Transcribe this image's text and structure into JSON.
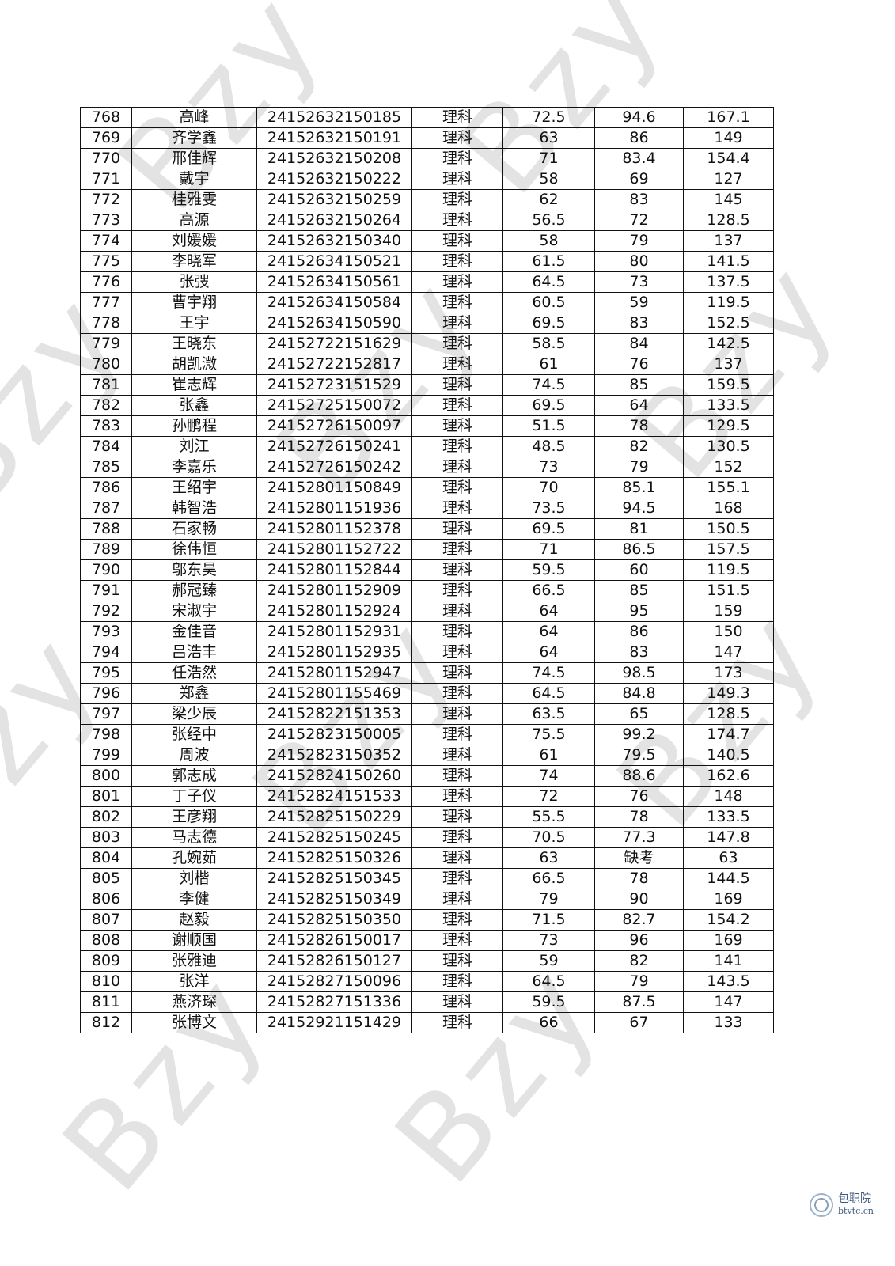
{
  "watermark": "Bzy",
  "logo": {
    "name_cn": "包职院",
    "domain": "btvtc.cn"
  },
  "table": {
    "rows": [
      [
        "768",
        "高峰",
        "24152632150185",
        "理科",
        "72.5",
        "94.6",
        "167.1"
      ],
      [
        "769",
        "齐学鑫",
        "24152632150191",
        "理科",
        "63",
        "86",
        "149"
      ],
      [
        "770",
        "邢佳辉",
        "24152632150208",
        "理科",
        "71",
        "83.4",
        "154.4"
      ],
      [
        "771",
        "戴宇",
        "24152632150222",
        "理科",
        "58",
        "69",
        "127"
      ],
      [
        "772",
        "桂雅雯",
        "24152632150259",
        "理科",
        "62",
        "83",
        "145"
      ],
      [
        "773",
        "高源",
        "24152632150264",
        "理科",
        "56.5",
        "72",
        "128.5"
      ],
      [
        "774",
        "刘媛媛",
        "24152632150340",
        "理科",
        "58",
        "79",
        "137"
      ],
      [
        "775",
        "李晓军",
        "24152634150521",
        "理科",
        "61.5",
        "80",
        "141.5"
      ],
      [
        "776",
        "张弢",
        "24152634150561",
        "理科",
        "64.5",
        "73",
        "137.5"
      ],
      [
        "777",
        "曹宇翔",
        "24152634150584",
        "理科",
        "60.5",
        "59",
        "119.5"
      ],
      [
        "778",
        "王宇",
        "24152634150590",
        "理科",
        "69.5",
        "83",
        "152.5"
      ],
      [
        "779",
        "王晓东",
        "24152722151629",
        "理科",
        "58.5",
        "84",
        "142.5"
      ],
      [
        "780",
        "胡凯溦",
        "24152722152817",
        "理科",
        "61",
        "76",
        "137"
      ],
      [
        "781",
        "崔志辉",
        "24152723151529",
        "理科",
        "74.5",
        "85",
        "159.5"
      ],
      [
        "782",
        "张鑫",
        "24152725150072",
        "理科",
        "69.5",
        "64",
        "133.5"
      ],
      [
        "783",
        "孙鹏程",
        "24152726150097",
        "理科",
        "51.5",
        "78",
        "129.5"
      ],
      [
        "784",
        "刘江",
        "24152726150241",
        "理科",
        "48.5",
        "82",
        "130.5"
      ],
      [
        "785",
        "李嘉乐",
        "24152726150242",
        "理科",
        "73",
        "79",
        "152"
      ],
      [
        "786",
        "王绍宇",
        "24152801150849",
        "理科",
        "70",
        "85.1",
        "155.1"
      ],
      [
        "787",
        "韩智浩",
        "24152801151936",
        "理科",
        "73.5",
        "94.5",
        "168"
      ],
      [
        "788",
        "石家畅",
        "24152801152378",
        "理科",
        "69.5",
        "81",
        "150.5"
      ],
      [
        "789",
        "徐伟恒",
        "24152801152722",
        "理科",
        "71",
        "86.5",
        "157.5"
      ],
      [
        "790",
        "邬东昊",
        "24152801152844",
        "理科",
        "59.5",
        "60",
        "119.5"
      ],
      [
        "791",
        "郝冠臻",
        "24152801152909",
        "理科",
        "66.5",
        "85",
        "151.5"
      ],
      [
        "792",
        "宋淑宇",
        "24152801152924",
        "理科",
        "64",
        "95",
        "159"
      ],
      [
        "793",
        "金佳音",
        "24152801152931",
        "理科",
        "64",
        "86",
        "150"
      ],
      [
        "794",
        "吕浩丰",
        "24152801152935",
        "理科",
        "64",
        "83",
        "147"
      ],
      [
        "795",
        "任浩然",
        "24152801152947",
        "理科",
        "74.5",
        "98.5",
        "173"
      ],
      [
        "796",
        "郑鑫",
        "24152801155469",
        "理科",
        "64.5",
        "84.8",
        "149.3"
      ],
      [
        "797",
        "梁少辰",
        "24152822151353",
        "理科",
        "63.5",
        "65",
        "128.5"
      ],
      [
        "798",
        "张经中",
        "24152823150005",
        "理科",
        "75.5",
        "99.2",
        "174.7"
      ],
      [
        "799",
        "周波",
        "24152823150352",
        "理科",
        "61",
        "79.5",
        "140.5"
      ],
      [
        "800",
        "郭志成",
        "24152824150260",
        "理科",
        "74",
        "88.6",
        "162.6"
      ],
      [
        "801",
        "丁子仪",
        "24152824151533",
        "理科",
        "72",
        "76",
        "148"
      ],
      [
        "802",
        "王彦翔",
        "24152825150229",
        "理科",
        "55.5",
        "78",
        "133.5"
      ],
      [
        "803",
        "马志德",
        "24152825150245",
        "理科",
        "70.5",
        "77.3",
        "147.8"
      ],
      [
        "804",
        "孔婉茹",
        "24152825150326",
        "理科",
        "63",
        "缺考",
        "63"
      ],
      [
        "805",
        "刘楷",
        "24152825150345",
        "理科",
        "66.5",
        "78",
        "144.5"
      ],
      [
        "806",
        "李健",
        "24152825150349",
        "理科",
        "79",
        "90",
        "169"
      ],
      [
        "807",
        "赵毅",
        "24152825150350",
        "理科",
        "71.5",
        "82.7",
        "154.2"
      ],
      [
        "808",
        "谢顺国",
        "24152826150017",
        "理科",
        "73",
        "96",
        "169"
      ],
      [
        "809",
        "张雅迪",
        "24152826150127",
        "理科",
        "59",
        "82",
        "141"
      ],
      [
        "810",
        "张洋",
        "24152827150096",
        "理科",
        "64.5",
        "79",
        "143.5"
      ],
      [
        "811",
        "燕济琛",
        "24152827151336",
        "理科",
        "59.5",
        "87.5",
        "147"
      ],
      [
        "812",
        "张博文",
        "24152921151429",
        "理科",
        "66",
        "67",
        "133"
      ]
    ]
  }
}
